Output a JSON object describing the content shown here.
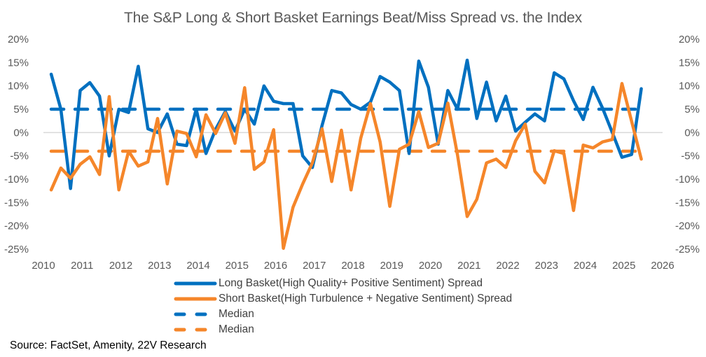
{
  "chart_data": {
    "type": "line",
    "title": "The S&P Long & Short Basket Earnings Beat/Miss Spread vs. the Index",
    "xlabel": "",
    "ylabel": "",
    "source": "Source: FactSet, Amenity, 22V Research",
    "xlim": [
      2010,
      2026
    ],
    "ylim": [
      -25,
      20
    ],
    "x_ticks": [
      "2010",
      "2011",
      "2012",
      "2013",
      "2014",
      "2015",
      "2016",
      "2017",
      "2018",
      "2019",
      "2020",
      "2021",
      "2022",
      "2023",
      "2024",
      "2025",
      "2026"
    ],
    "y_ticks": [
      "20%",
      "15%",
      "10%",
      "5%",
      "0%",
      "-5%",
      "-10%",
      "-15%",
      "-20%",
      "-25%"
    ],
    "y_tick_values": [
      20,
      15,
      10,
      5,
      0,
      -5,
      -10,
      -15,
      -20,
      -25
    ],
    "y_axis_right": true,
    "zero_line": true,
    "grid": false,
    "legend_position": "bottom",
    "x_start": 2010.2,
    "x_step": 0.25,
    "series": [
      {
        "name": "Long Basket(High Quality+ Positive Sentiment) Spread",
        "color": "#0070C0",
        "style": "solid",
        "values": [
          12.5,
          5,
          -12,
          9,
          10.7,
          7.8,
          -5,
          5,
          4.3,
          14.2,
          0.8,
          0,
          4,
          -2.5,
          -2.8,
          5,
          -4.5,
          0.7,
          4.5,
          0.3,
          5,
          1.8,
          10,
          6.7,
          6.2,
          6.2,
          -5,
          -7.5,
          1.5,
          9,
          8.5,
          6,
          5,
          6.5,
          12,
          10.8,
          9,
          -4.5,
          15.3,
          9.7,
          -2.5,
          9,
          5,
          15.5,
          3,
          10.8,
          2.5,
          7.8,
          0.3,
          2.2,
          4,
          2.5,
          12.8,
          11.5,
          6.8,
          2.8,
          9.7,
          5.2,
          0,
          -5.3,
          -4.7,
          9.4
        ]
      },
      {
        "name": "Short Basket(High Turbulence + Negative Sentiment) Spread",
        "color": "#F5862A",
        "style": "solid",
        "values": [
          -12.3,
          -7.6,
          -9.8,
          -6.8,
          -5.2,
          -9,
          7.7,
          -12.3,
          -4,
          -7.2,
          -6.3,
          3,
          -11,
          0.3,
          -0.2,
          -5.2,
          3.8,
          -0.2,
          4.2,
          -2.3,
          9.6,
          -7.9,
          -6.3,
          0.6,
          -24.8,
          -16,
          -11,
          -6.5,
          0.8,
          -10.5,
          0.5,
          -12.3,
          -1.2,
          6.2,
          -2,
          -15.8,
          -3.6,
          -2.5,
          4.5,
          -3.2,
          -2.3,
          6.3,
          -4.8,
          -18,
          -14.3,
          -6.5,
          -5.7,
          -7.5,
          -1.8,
          1.8,
          -8.3,
          -10.8,
          -3.9,
          -4.5,
          -16.7,
          -2.7,
          -3.3,
          -2,
          -1.5,
          10.5,
          2.4,
          -5.7
        ]
      },
      {
        "name": "Median",
        "color": "#0070C0",
        "style": "dashed",
        "constant": 5
      },
      {
        "name": "Median",
        "color": "#F5862A",
        "style": "dashed",
        "constant": -4
      }
    ]
  }
}
